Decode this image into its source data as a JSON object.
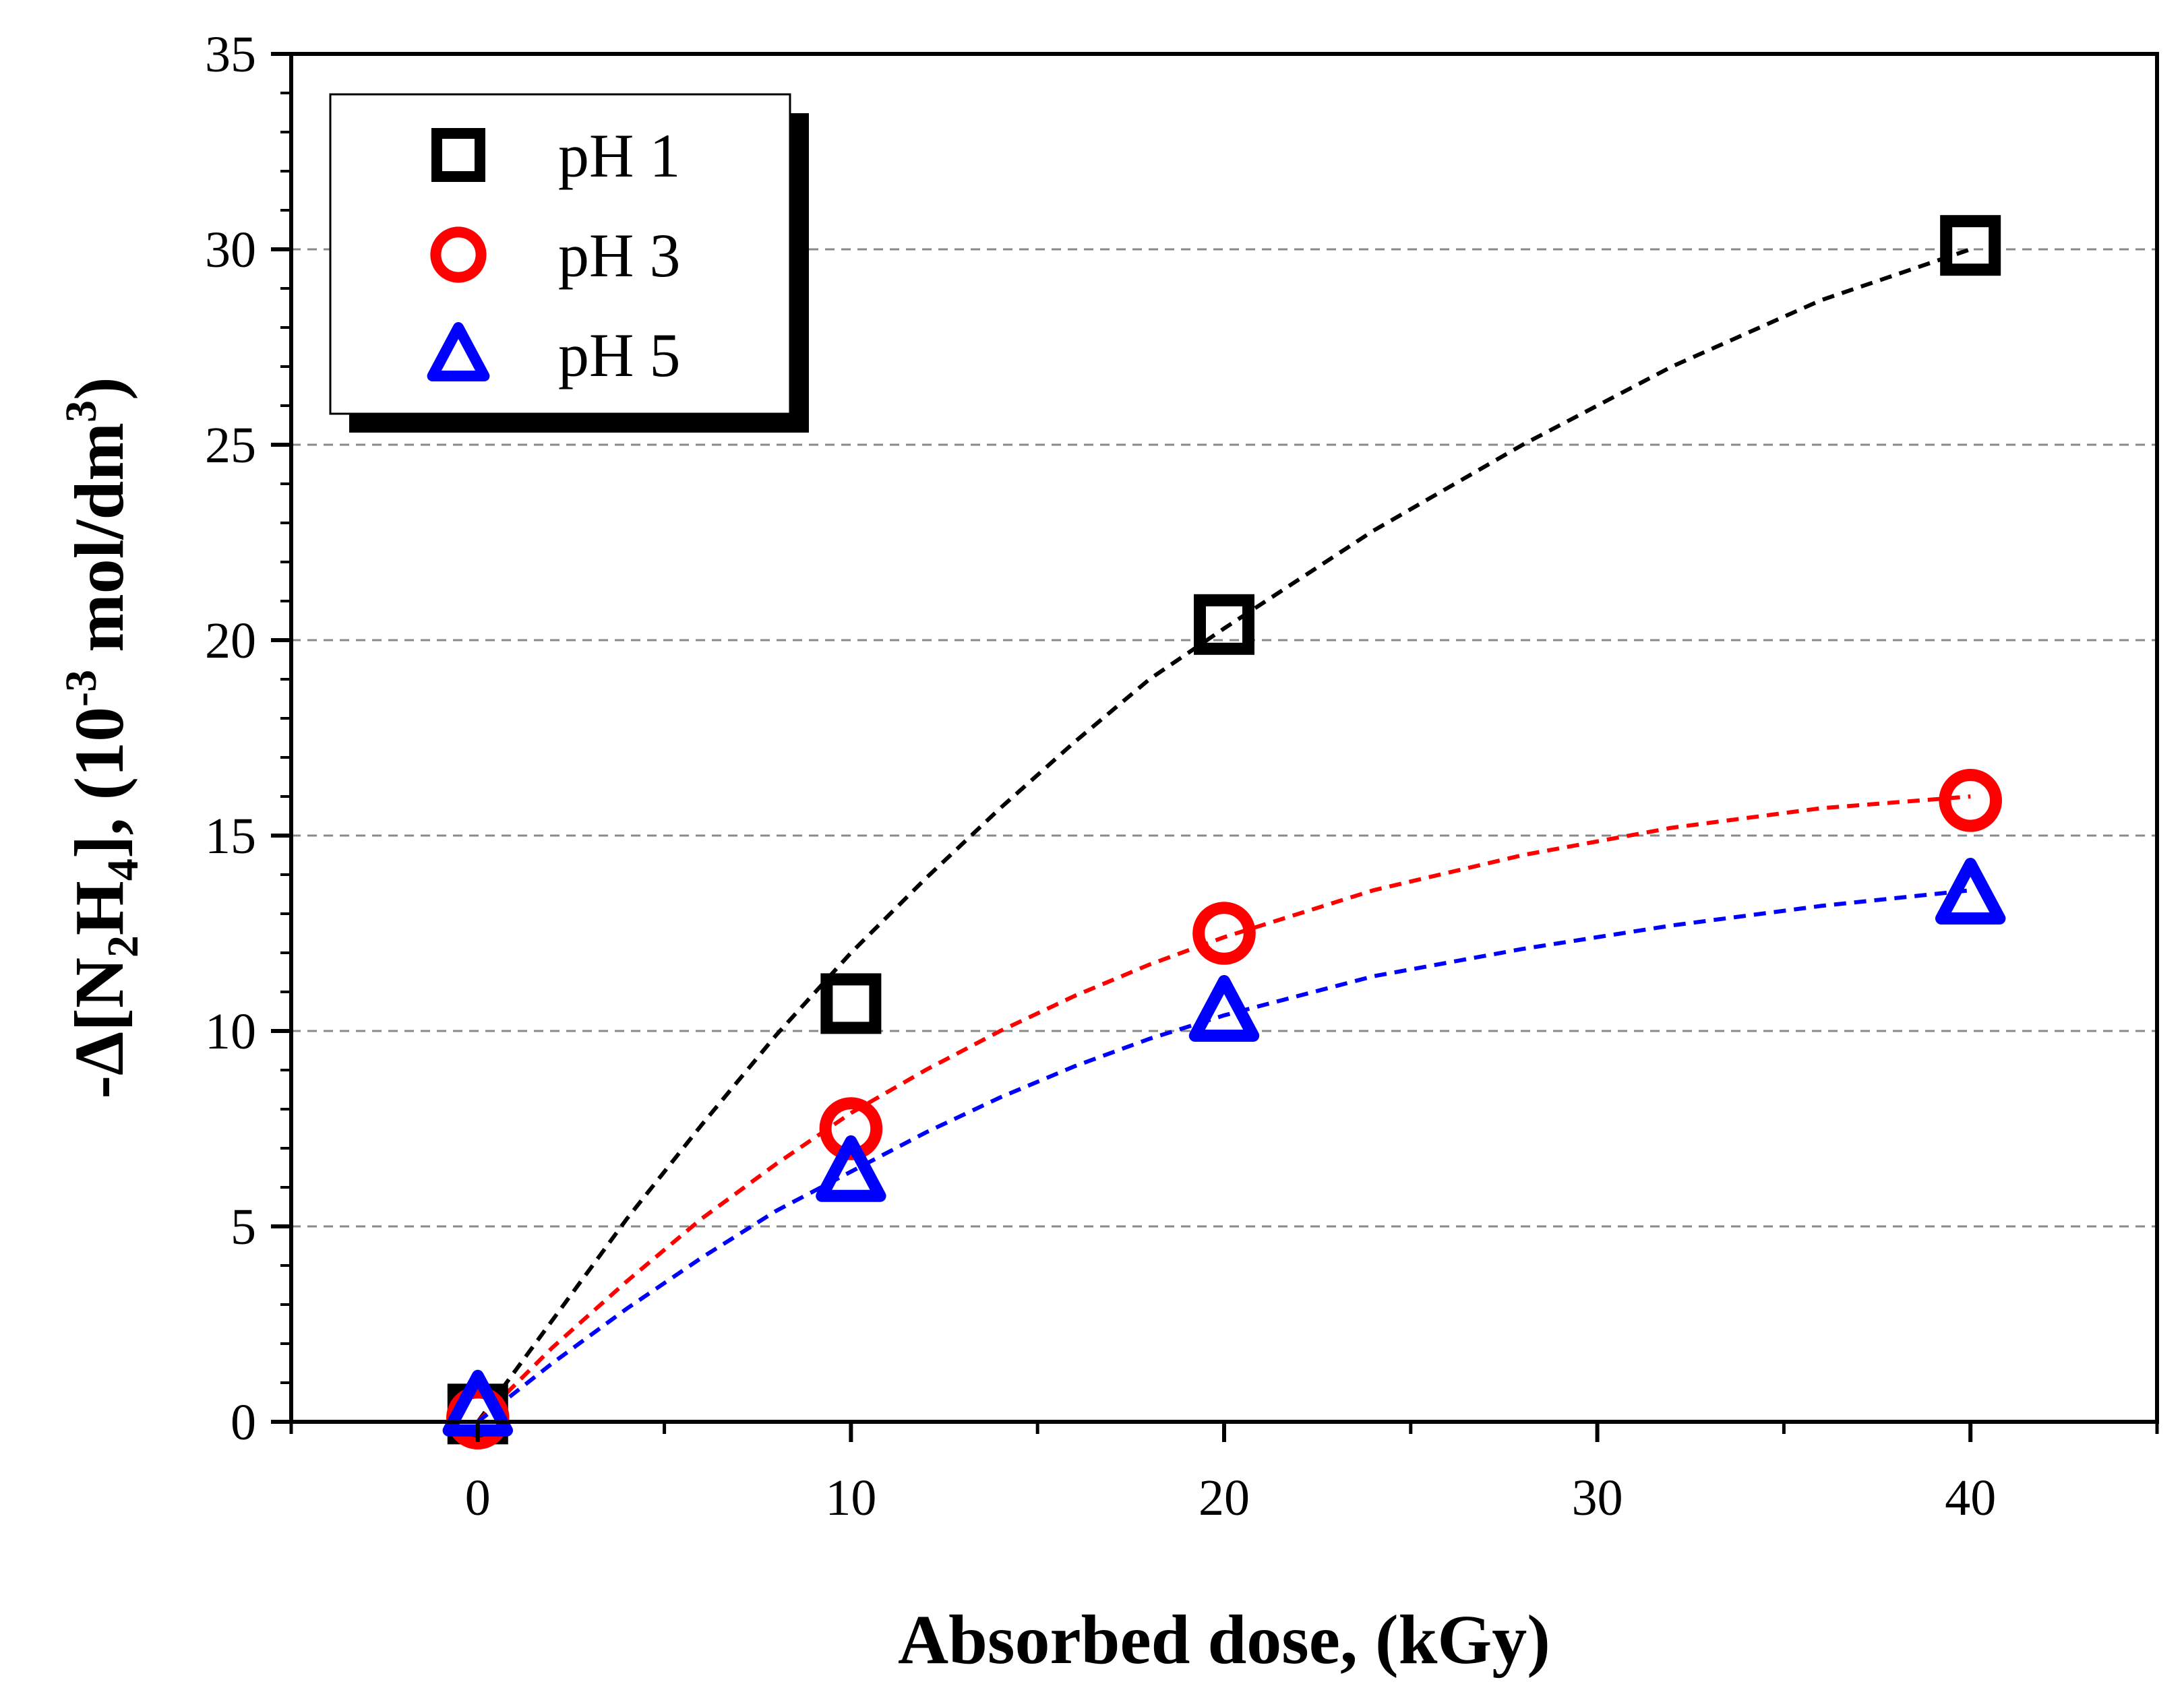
{
  "chart_data": {
    "type": "scatter",
    "x_axis": {
      "title": "Absorbed dose, (kGy)",
      "range": [
        -5,
        45
      ],
      "major_ticks": [
        0,
        10,
        20,
        30,
        40
      ],
      "minor_ticks": [
        -5,
        5,
        15,
        25,
        35,
        45
      ]
    },
    "y_axis": {
      "title_parts": {
        "prefix": "-Δ[N",
        "sub_1": "2",
        "mid": "H",
        "sub_2": "4",
        "unit_open": "], (10",
        "sup_1": "-3",
        "unit_mid": " mol/dm",
        "sup_2": "3",
        "unit_close": ")"
      },
      "range": [
        0,
        35
      ],
      "major_ticks": [
        0,
        5,
        10,
        15,
        20,
        25,
        30,
        35
      ],
      "minor_step": 1
    },
    "grid": {
      "horizontal_dashed": true,
      "lines_at": [
        5,
        10,
        15,
        20,
        25,
        30
      ]
    },
    "legend": {
      "position": "top-left",
      "entries": [
        {
          "label": "pH 1",
          "marker": "square",
          "color": "#000000"
        },
        {
          "label": "pH 3",
          "marker": "circle",
          "color": "#ff0000"
        },
        {
          "label": "pH 5",
          "marker": "triangle",
          "color": "#0000ff"
        }
      ]
    },
    "series": [
      {
        "name": "pH 1",
        "color": "#000000",
        "marker": "square",
        "points": [
          {
            "x": 0,
            "y": 0.2
          },
          {
            "x": 10,
            "y": 10.7
          },
          {
            "x": 20,
            "y": 20.4
          },
          {
            "x": 40,
            "y": 30.1
          }
        ],
        "fit_curve": [
          [
            0,
            0
          ],
          [
            2,
            2.6
          ],
          [
            4,
            5.2
          ],
          [
            6,
            7.6
          ],
          [
            8,
            9.9
          ],
          [
            10,
            12.0
          ],
          [
            12,
            13.9
          ],
          [
            14,
            15.7
          ],
          [
            16,
            17.4
          ],
          [
            18,
            19.0
          ],
          [
            20,
            20.3
          ],
          [
            24,
            22.8
          ],
          [
            28,
            25.0
          ],
          [
            32,
            27.0
          ],
          [
            36,
            28.7
          ],
          [
            40,
            30.0
          ]
        ]
      },
      {
        "name": "pH 3",
        "color": "#ff0000",
        "marker": "circle",
        "points": [
          {
            "x": 0,
            "y": 0.1
          },
          {
            "x": 10,
            "y": 7.5
          },
          {
            "x": 20,
            "y": 12.5
          },
          {
            "x": 40,
            "y": 15.9
          }
        ],
        "fit_curve": [
          [
            0,
            0
          ],
          [
            2,
            1.9
          ],
          [
            4,
            3.6
          ],
          [
            6,
            5.2
          ],
          [
            8,
            6.6
          ],
          [
            10,
            7.9
          ],
          [
            12,
            9.0
          ],
          [
            14,
            10.0
          ],
          [
            16,
            10.9
          ],
          [
            18,
            11.7
          ],
          [
            20,
            12.4
          ],
          [
            24,
            13.6
          ],
          [
            28,
            14.5
          ],
          [
            32,
            15.2
          ],
          [
            36,
            15.7
          ],
          [
            40,
            16.0
          ]
        ]
      },
      {
        "name": "pH 5",
        "color": "#0000ff",
        "marker": "triangle",
        "points": [
          {
            "x": 0,
            "y": 0.4
          },
          {
            "x": 10,
            "y": 6.4
          },
          {
            "x": 20,
            "y": 10.5
          },
          {
            "x": 40,
            "y": 13.5
          }
        ],
        "fit_curve": [
          [
            0,
            0
          ],
          [
            2,
            1.5
          ],
          [
            4,
            2.9
          ],
          [
            6,
            4.2
          ],
          [
            8,
            5.4
          ],
          [
            10,
            6.4
          ],
          [
            12,
            7.4
          ],
          [
            14,
            8.3
          ],
          [
            16,
            9.1
          ],
          [
            18,
            9.8
          ],
          [
            20,
            10.4
          ],
          [
            24,
            11.4
          ],
          [
            28,
            12.1
          ],
          [
            32,
            12.7
          ],
          [
            36,
            13.2
          ],
          [
            40,
            13.6
          ]
        ]
      }
    ]
  }
}
